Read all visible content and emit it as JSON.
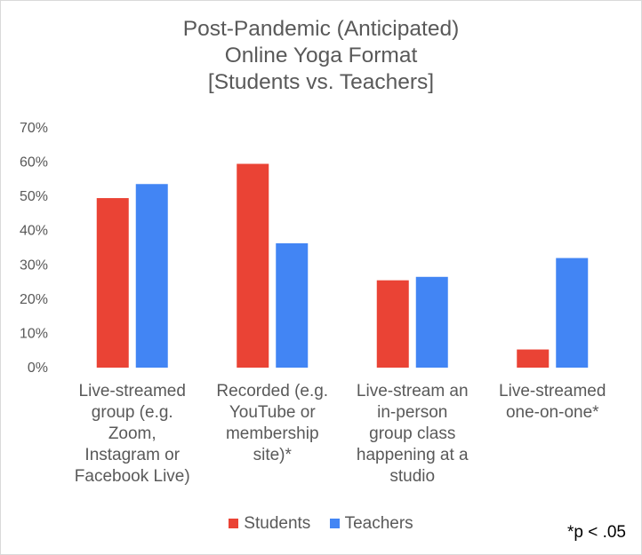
{
  "chart_data": {
    "type": "bar",
    "title_lines": [
      "Post-Pandemic (Anticipated)",
      "Online Yoga Format",
      "[Students vs. Teachers]"
    ],
    "categories": [
      [
        "Live-streamed",
        "group (e.g.",
        "Zoom,",
        "Instagram or",
        "Facebook Live)"
      ],
      [
        "Recorded (e.g.",
        "YouTube or",
        "membership",
        "site)*"
      ],
      [
        "Live-stream an",
        "in-person",
        "group class",
        "happening at a",
        "studio"
      ],
      [
        "Live-streamed",
        "one-on-one*"
      ]
    ],
    "series": [
      {
        "name": "Students",
        "color": "#ea4335",
        "values": [
          49.5,
          59.5,
          25.5,
          5.3
        ]
      },
      {
        "name": "Teachers",
        "color": "#4285f4",
        "values": [
          53.6,
          36.3,
          26.5,
          32.0
        ]
      }
    ],
    "ylim": [
      0,
      70
    ],
    "yticks": [
      "0%",
      "10%",
      "20%",
      "30%",
      "40%",
      "50%",
      "60%",
      "70%"
    ],
    "grid": false,
    "legend_position": "bottom",
    "footnote": "*p < .05"
  }
}
